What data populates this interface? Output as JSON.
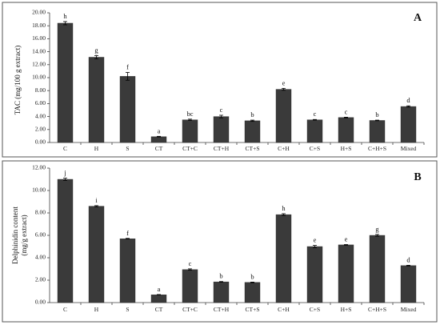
{
  "chart_data": [
    {
      "panel": "A",
      "type": "bar",
      "ylabel": "TAC (mg/100 g extract)",
      "categories": [
        "C",
        "H",
        "S",
        "CT",
        "CT+C",
        "CT+H",
        "CT+S",
        "C+H",
        "C+S",
        "H+S",
        "C+H+S",
        "Mixed"
      ],
      "values": [
        18.4,
        13.15,
        10.2,
        0.9,
        3.5,
        4.0,
        3.35,
        8.2,
        3.5,
        3.85,
        3.4,
        5.55
      ],
      "errors": [
        0.25,
        0.25,
        0.6,
        0.05,
        0.1,
        0.2,
        0.1,
        0.15,
        0.05,
        0.05,
        0.05,
        0.1
      ],
      "letters": [
        "h",
        "g",
        "f",
        "a",
        "bc",
        "c",
        "b",
        "e",
        "c",
        "c",
        "b",
        "d"
      ],
      "ylim": [
        0,
        20
      ],
      "yticks": [
        "0.00",
        "2.00",
        "4.00",
        "6.00",
        "8.00",
        "10.00",
        "12.00",
        "14.00",
        "16.00",
        "18.00",
        "20.00"
      ],
      "grid": false
    },
    {
      "panel": "B",
      "type": "bar",
      "ylabel_lines": [
        "Delphinidin content",
        "(mg/g extract)"
      ],
      "categories": [
        "C",
        "H",
        "S",
        "CT",
        "CT+C",
        "CT+H",
        "CT+S",
        "C+H",
        "C+S",
        "H+S",
        "C+H+S",
        "Mixed"
      ],
      "values": [
        11.0,
        8.6,
        5.7,
        0.7,
        2.95,
        1.85,
        1.8,
        7.85,
        5.0,
        5.15,
        6.0,
        3.3
      ],
      "errors": [
        0.1,
        0.05,
        0.03,
        0.02,
        0.06,
        0.03,
        0.03,
        0.08,
        0.1,
        0.03,
        0.08,
        0.03
      ],
      "letters": [
        "j",
        "i",
        "f",
        "a",
        "c",
        "b",
        "b",
        "h",
        "e",
        "e",
        "g",
        "d"
      ],
      "ylim": [
        0,
        12
      ],
      "yticks": [
        "0.00",
        "2.00",
        "4.00",
        "6.00",
        "8.00",
        "10.00",
        "12.00"
      ],
      "grid": false
    }
  ]
}
